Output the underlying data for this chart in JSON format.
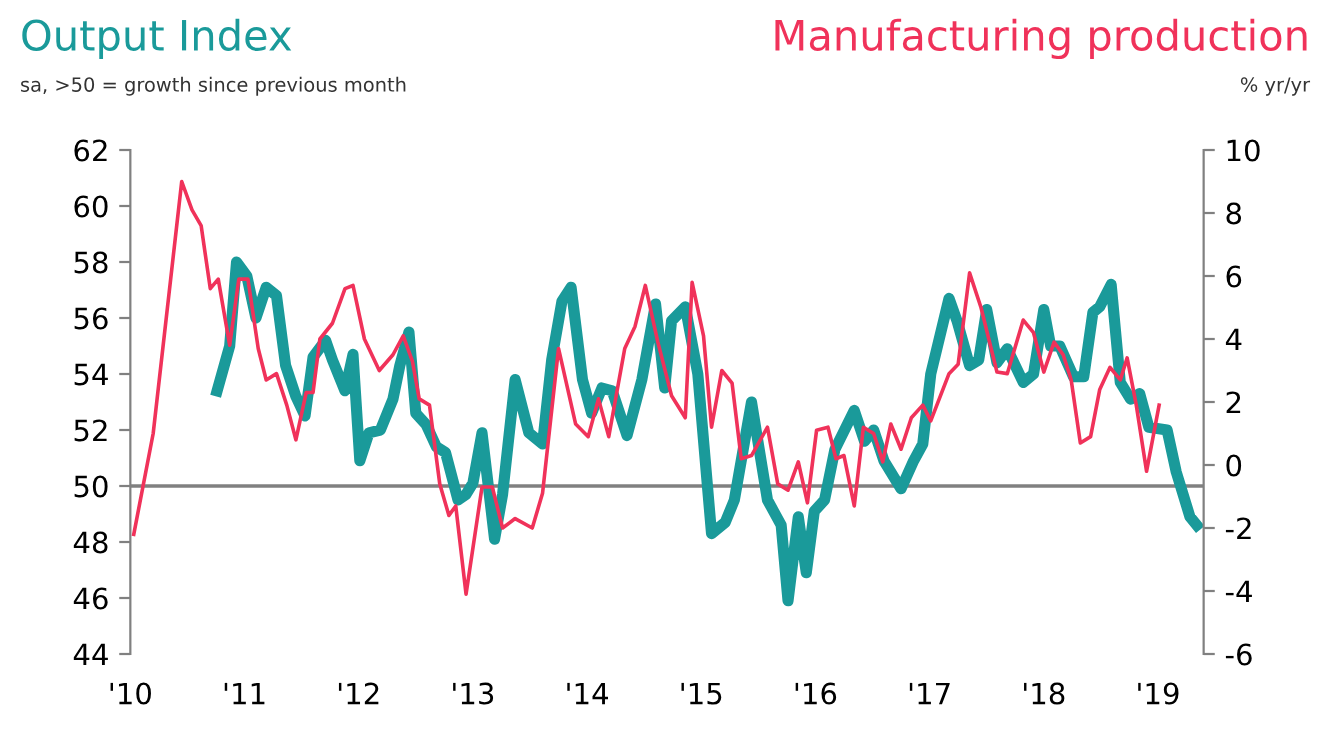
{
  "chart_data": {
    "type": "line",
    "ylabel": "sa, >50 = growth since previous month",
    "y2label": "% yr/yr",
    "xlim": [
      2010,
      2019.4
    ],
    "xticks": [
      {
        "value": 2010,
        "label": "'10"
      },
      {
        "value": 2011,
        "label": "'11"
      },
      {
        "value": 2012,
        "label": "'12"
      },
      {
        "value": 2013,
        "label": "'13"
      },
      {
        "value": 2014,
        "label": "'14"
      },
      {
        "value": 2015,
        "label": "'15"
      },
      {
        "value": 2016,
        "label": "'16"
      },
      {
        "value": 2017,
        "label": "'17"
      },
      {
        "value": 2018,
        "label": "'18"
      },
      {
        "value": 2019,
        "label": "'19"
      }
    ],
    "ylim": [
      44,
      62
    ],
    "yticks": [
      44,
      46,
      48,
      50,
      52,
      54,
      56,
      58,
      60,
      62
    ],
    "y2lim": [
      -6,
      10
    ],
    "y2ticks": [
      -6,
      -4,
      -2,
      0,
      2,
      4,
      6,
      8,
      10
    ],
    "ref_lines": [
      {
        "axis": "y",
        "value": 50,
        "color": "#808080"
      }
    ],
    "grid": false,
    "legend": false,
    "marker": "none",
    "line_style": "solid",
    "series": [
      {
        "name": "Output Index",
        "color": "#1a9a9a",
        "x": [
          2010.76,
          2010.87,
          2010.93,
          2011.02,
          2011.1,
          2011.19,
          2011.28,
          2011.36,
          2011.45,
          2011.53,
          2011.6,
          2011.71,
          2011.77,
          2011.88,
          2011.95,
          2012.01,
          2012.09,
          2012.19,
          2012.3,
          2012.36,
          2012.44,
          2012.5,
          2012.59,
          2012.68,
          2012.76,
          2012.87,
          2012.94,
          2013.0,
          2013.08,
          2013.19,
          2013.26,
          2013.37,
          2013.49,
          2013.61,
          2013.69,
          2013.78,
          2013.86,
          2013.96,
          2014.04,
          2014.13,
          2014.22,
          2014.35,
          2014.48,
          2014.6,
          2014.68,
          2014.74,
          2014.86,
          2014.97,
          2015.09,
          2015.21,
          2015.29,
          2015.44,
          2015.58,
          2015.7,
          2015.76,
          2015.85,
          2015.92,
          2015.99,
          2016.08,
          2016.17,
          2016.34,
          2016.43,
          2016.51,
          2016.6,
          2016.75,
          2016.86,
          2016.94,
          2017.01,
          2017.17,
          2017.24,
          2017.35,
          2017.43,
          2017.5,
          2017.59,
          2017.68,
          2017.82,
          2017.91,
          2018.0,
          2018.06,
          2018.14,
          2018.26,
          2018.35,
          2018.43,
          2018.49,
          2018.59,
          2018.67,
          2018.76,
          2018.84,
          2018.92,
          2019.08,
          2019.16,
          2019.28,
          2019.34
        ],
        "values": [
          53.4,
          55.0,
          58.0,
          57.5,
          56.0,
          57.1,
          56.8,
          54.3,
          53.2,
          52.5,
          54.6,
          55.2,
          54.5,
          53.4,
          54.7,
          50.9,
          51.9,
          52.0,
          53.1,
          54.3,
          55.5,
          52.6,
          52.2,
          51.4,
          51.2,
          49.5,
          49.7,
          50.1,
          51.9,
          48.1,
          49.7,
          53.8,
          51.9,
          51.5,
          54.5,
          56.6,
          57.1,
          53.8,
          52.6,
          53.5,
          53.4,
          51.8,
          53.8,
          56.5,
          53.5,
          55.9,
          56.4,
          54.0,
          48.3,
          48.7,
          49.5,
          53.0,
          49.5,
          48.6,
          45.9,
          48.9,
          46.9,
          49.1,
          49.5,
          51.3,
          52.7,
          51.6,
          52.0,
          50.9,
          49.9,
          50.9,
          51.5,
          54.0,
          56.7,
          55.9,
          54.3,
          54.5,
          56.3,
          54.4,
          54.9,
          53.7,
          54.0,
          56.3,
          55.0,
          55.0,
          53.9,
          53.9,
          56.2,
          56.4,
          57.2,
          53.7,
          53.1,
          53.3,
          52.1,
          52.0,
          50.5,
          48.9,
          48.6
        ]
      },
      {
        "name": "Manufacturing production",
        "color": "#f0325a",
        "axis": "y2",
        "x": [
          2010.03,
          2010.2,
          2010.45,
          2010.54,
          2010.62,
          2010.7,
          2010.77,
          2010.87,
          2010.95,
          2011.03,
          2011.12,
          2011.19,
          2011.28,
          2011.37,
          2011.45,
          2011.54,
          2011.6,
          2011.66,
          2011.77,
          2011.88,
          2011.95,
          2012.05,
          2012.18,
          2012.3,
          2012.39,
          2012.47,
          2012.53,
          2012.62,
          2012.71,
          2012.79,
          2012.85,
          2012.94,
          2013.08,
          2013.17,
          2013.26,
          2013.37,
          2013.52,
          2013.61,
          2013.75,
          2013.9,
          2014.01,
          2014.1,
          2014.19,
          2014.33,
          2014.42,
          2014.51,
          2014.62,
          2014.74,
          2014.86,
          2014.92,
          2015.02,
          2015.09,
          2015.18,
          2015.27,
          2015.35,
          2015.44,
          2015.58,
          2015.67,
          2015.76,
          2015.85,
          2015.93,
          2016.01,
          2016.11,
          2016.18,
          2016.25,
          2016.34,
          2016.42,
          2016.51,
          2016.59,
          2016.66,
          2016.75,
          2016.84,
          2016.94,
          2017.01,
          2017.17,
          2017.25,
          2017.35,
          2017.45,
          2017.59,
          2017.68,
          2017.82,
          2017.91,
          2018.0,
          2018.09,
          2018.17,
          2018.24,
          2018.32,
          2018.41,
          2018.49,
          2018.58,
          2018.67,
          2018.73,
          2018.81,
          2018.9,
          2019.01
        ],
        "values": [
          -2.2,
          1.0,
          9.0,
          8.1,
          7.6,
          5.6,
          5.9,
          3.8,
          5.9,
          5.9,
          3.7,
          2.7,
          2.9,
          1.9,
          0.8,
          2.3,
          2.3,
          4.0,
          4.5,
          5.6,
          5.7,
          4.0,
          3.0,
          3.5,
          4.1,
          3.3,
          2.1,
          1.9,
          -0.6,
          -1.6,
          -1.3,
          -4.1,
          -0.7,
          -0.7,
          -2.0,
          -1.7,
          -2.0,
          -0.9,
          3.7,
          1.3,
          0.9,
          2.1,
          0.9,
          3.7,
          4.4,
          5.7,
          3.9,
          2.2,
          1.5,
          5.8,
          4.1,
          1.2,
          3.0,
          2.6,
          0.2,
          0.3,
          1.2,
          -0.6,
          -0.8,
          0.1,
          -1.2,
          1.1,
          1.2,
          0.2,
          0.3,
          -1.3,
          1.2,
          1.0,
          0.1,
          1.3,
          0.5,
          1.5,
          1.9,
          1.4,
          2.9,
          3.2,
          6.1,
          5.0,
          2.95,
          2.9,
          4.6,
          4.2,
          2.95,
          3.9,
          3.5,
          2.7,
          0.7,
          0.9,
          2.4,
          3.1,
          2.7,
          3.4,
          1.9,
          -0.2,
          1.9
        ]
      }
    ]
  }
}
